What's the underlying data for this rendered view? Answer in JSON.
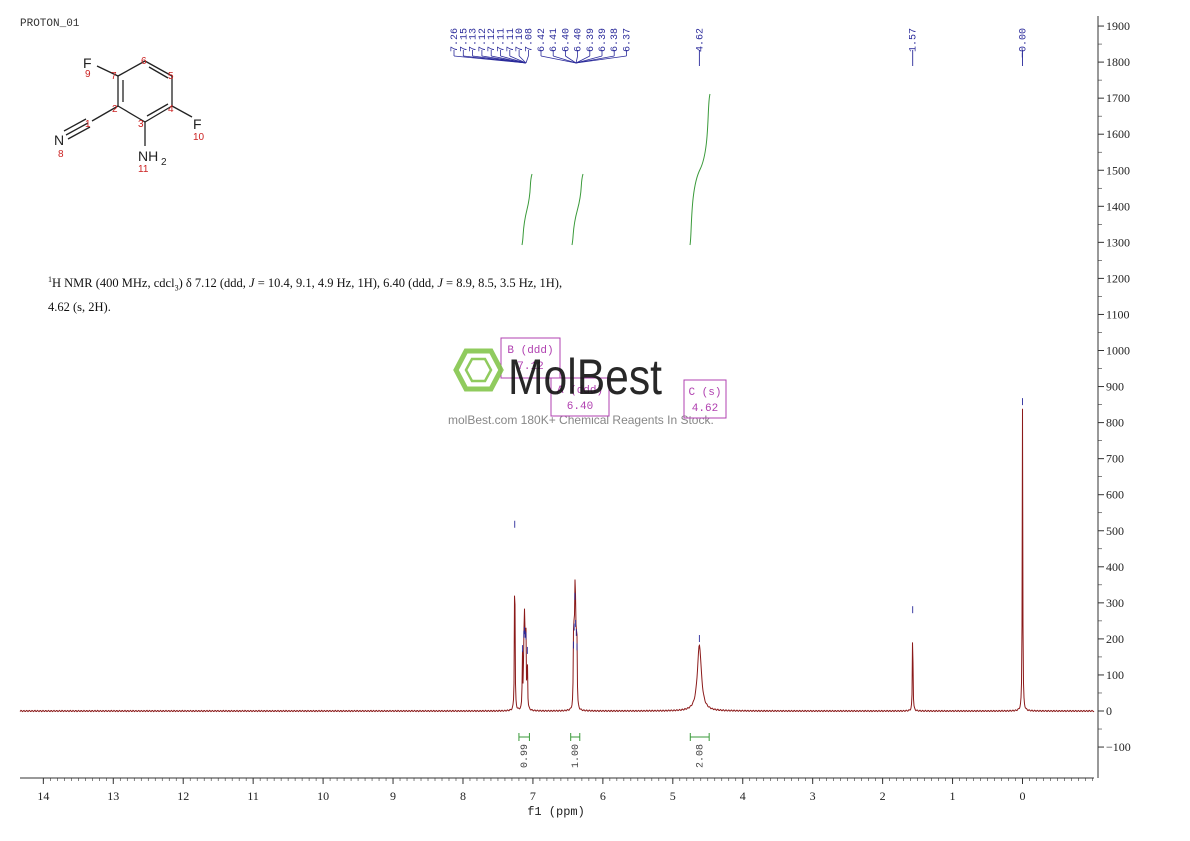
{
  "chart_data": {
    "type": "line",
    "title": "PROTON_01",
    "xlabel": "f1 (ppm)",
    "ylabel": "",
    "xlim": [
      14.3,
      -1.0
    ],
    "ylim": [
      -180,
      1920
    ],
    "x_ticks": [
      14,
      13,
      12,
      11,
      10,
      9,
      8,
      7,
      6,
      5,
      4,
      3,
      2,
      1,
      0
    ],
    "y_ticks": [
      1900,
      1800,
      1700,
      1600,
      1500,
      1400,
      1300,
      1200,
      1100,
      1000,
      900,
      800,
      700,
      600,
      500,
      400,
      300,
      200,
      100,
      0,
      -100
    ],
    "peaks": [
      {
        "ppm": 7.26,
        "height": 500
      },
      {
        "ppm": 7.15,
        "height": 155
      },
      {
        "ppm": 7.13,
        "height": 195
      },
      {
        "ppm": 7.12,
        "height": 205
      },
      {
        "ppm": 7.11,
        "height": 195
      },
      {
        "ppm": 7.1,
        "height": 190
      },
      {
        "ppm": 7.08,
        "height": 150
      },
      {
        "ppm": 6.42,
        "height": 165
      },
      {
        "ppm": 6.41,
        "height": 215
      },
      {
        "ppm": 6.4,
        "height": 300
      },
      {
        "ppm": 6.39,
        "height": 225
      },
      {
        "ppm": 6.38,
        "height": 200
      },
      {
        "ppm": 6.37,
        "height": 160
      },
      {
        "ppm": 4.62,
        "height": 183,
        "broad": true
      },
      {
        "ppm": 1.57,
        "height": 263
      },
      {
        "ppm": 0.0,
        "height": 840
      }
    ],
    "peak_labels_group1": [
      "7.26",
      "7.15",
      "7.13",
      "7.12",
      "7.12",
      "7.11",
      "7.11",
      "7.10",
      "7.08"
    ],
    "peak_labels_group2": [
      "6.42",
      "6.41",
      "6.40",
      "6.40",
      "6.39",
      "6.39",
      "6.38",
      "6.37"
    ],
    "peak_labels_single": [
      {
        "ppm": 4.62,
        "label": "4.62"
      },
      {
        "ppm": 1.57,
        "label": "1.57"
      },
      {
        "ppm": 0.0,
        "label": "0.00"
      }
    ],
    "integrals": [
      {
        "from": 7.2,
        "to": 7.05,
        "value": "0.99"
      },
      {
        "from": 6.46,
        "to": 6.33,
        "value": "1.00"
      },
      {
        "from": 4.75,
        "to": 4.48,
        "value": "2.08"
      }
    ],
    "multiplets": [
      {
        "id": "B",
        "type": "ddd",
        "shift": "7.12",
        "top_label": "B (ddd)"
      },
      {
        "id": "A",
        "type": "ddd",
        "shift": "6.40",
        "top_label": "A (ddd)"
      },
      {
        "id": "C",
        "type": "s",
        "shift": "4.62",
        "top_label": "C (s)"
      }
    ]
  },
  "molecule": {
    "atoms": {
      "F9": "F",
      "F10": "F",
      "N8": "N",
      "NH2": "NH",
      "H2sub": "2"
    },
    "numbers": [
      "1",
      "2",
      "3",
      "4",
      "5",
      "6",
      "7",
      "8",
      "9",
      "10",
      "11"
    ]
  },
  "nmr_description": {
    "line1": "H NMR (400 MHz, cdcl",
    "sup1": "1",
    "sub3": "3",
    "line1b": ") δ 7.12 (ddd, ",
    "j1": "J",
    "line1c": " = 10.4, 9.1, 4.9 Hz, 1H), 6.40 (ddd, ",
    "j2": "J",
    "line1d": " = 8.9, 8.5, 3.5 Hz, 1H),",
    "line2": "4.62 (s, 2H)."
  },
  "watermark": {
    "brand": "MolBest",
    "tagline": "molBest.com 180K+ Chemical Reagents In Stock."
  },
  "colors": {
    "spectrum": "#8b1a1a",
    "peak_label": "#2a2a9a",
    "integral": "#3a9a3a",
    "multiplet": "#b040b0",
    "axis": "#333333",
    "atom_red": "#cc2222",
    "logo_green": "#7dc242"
  }
}
